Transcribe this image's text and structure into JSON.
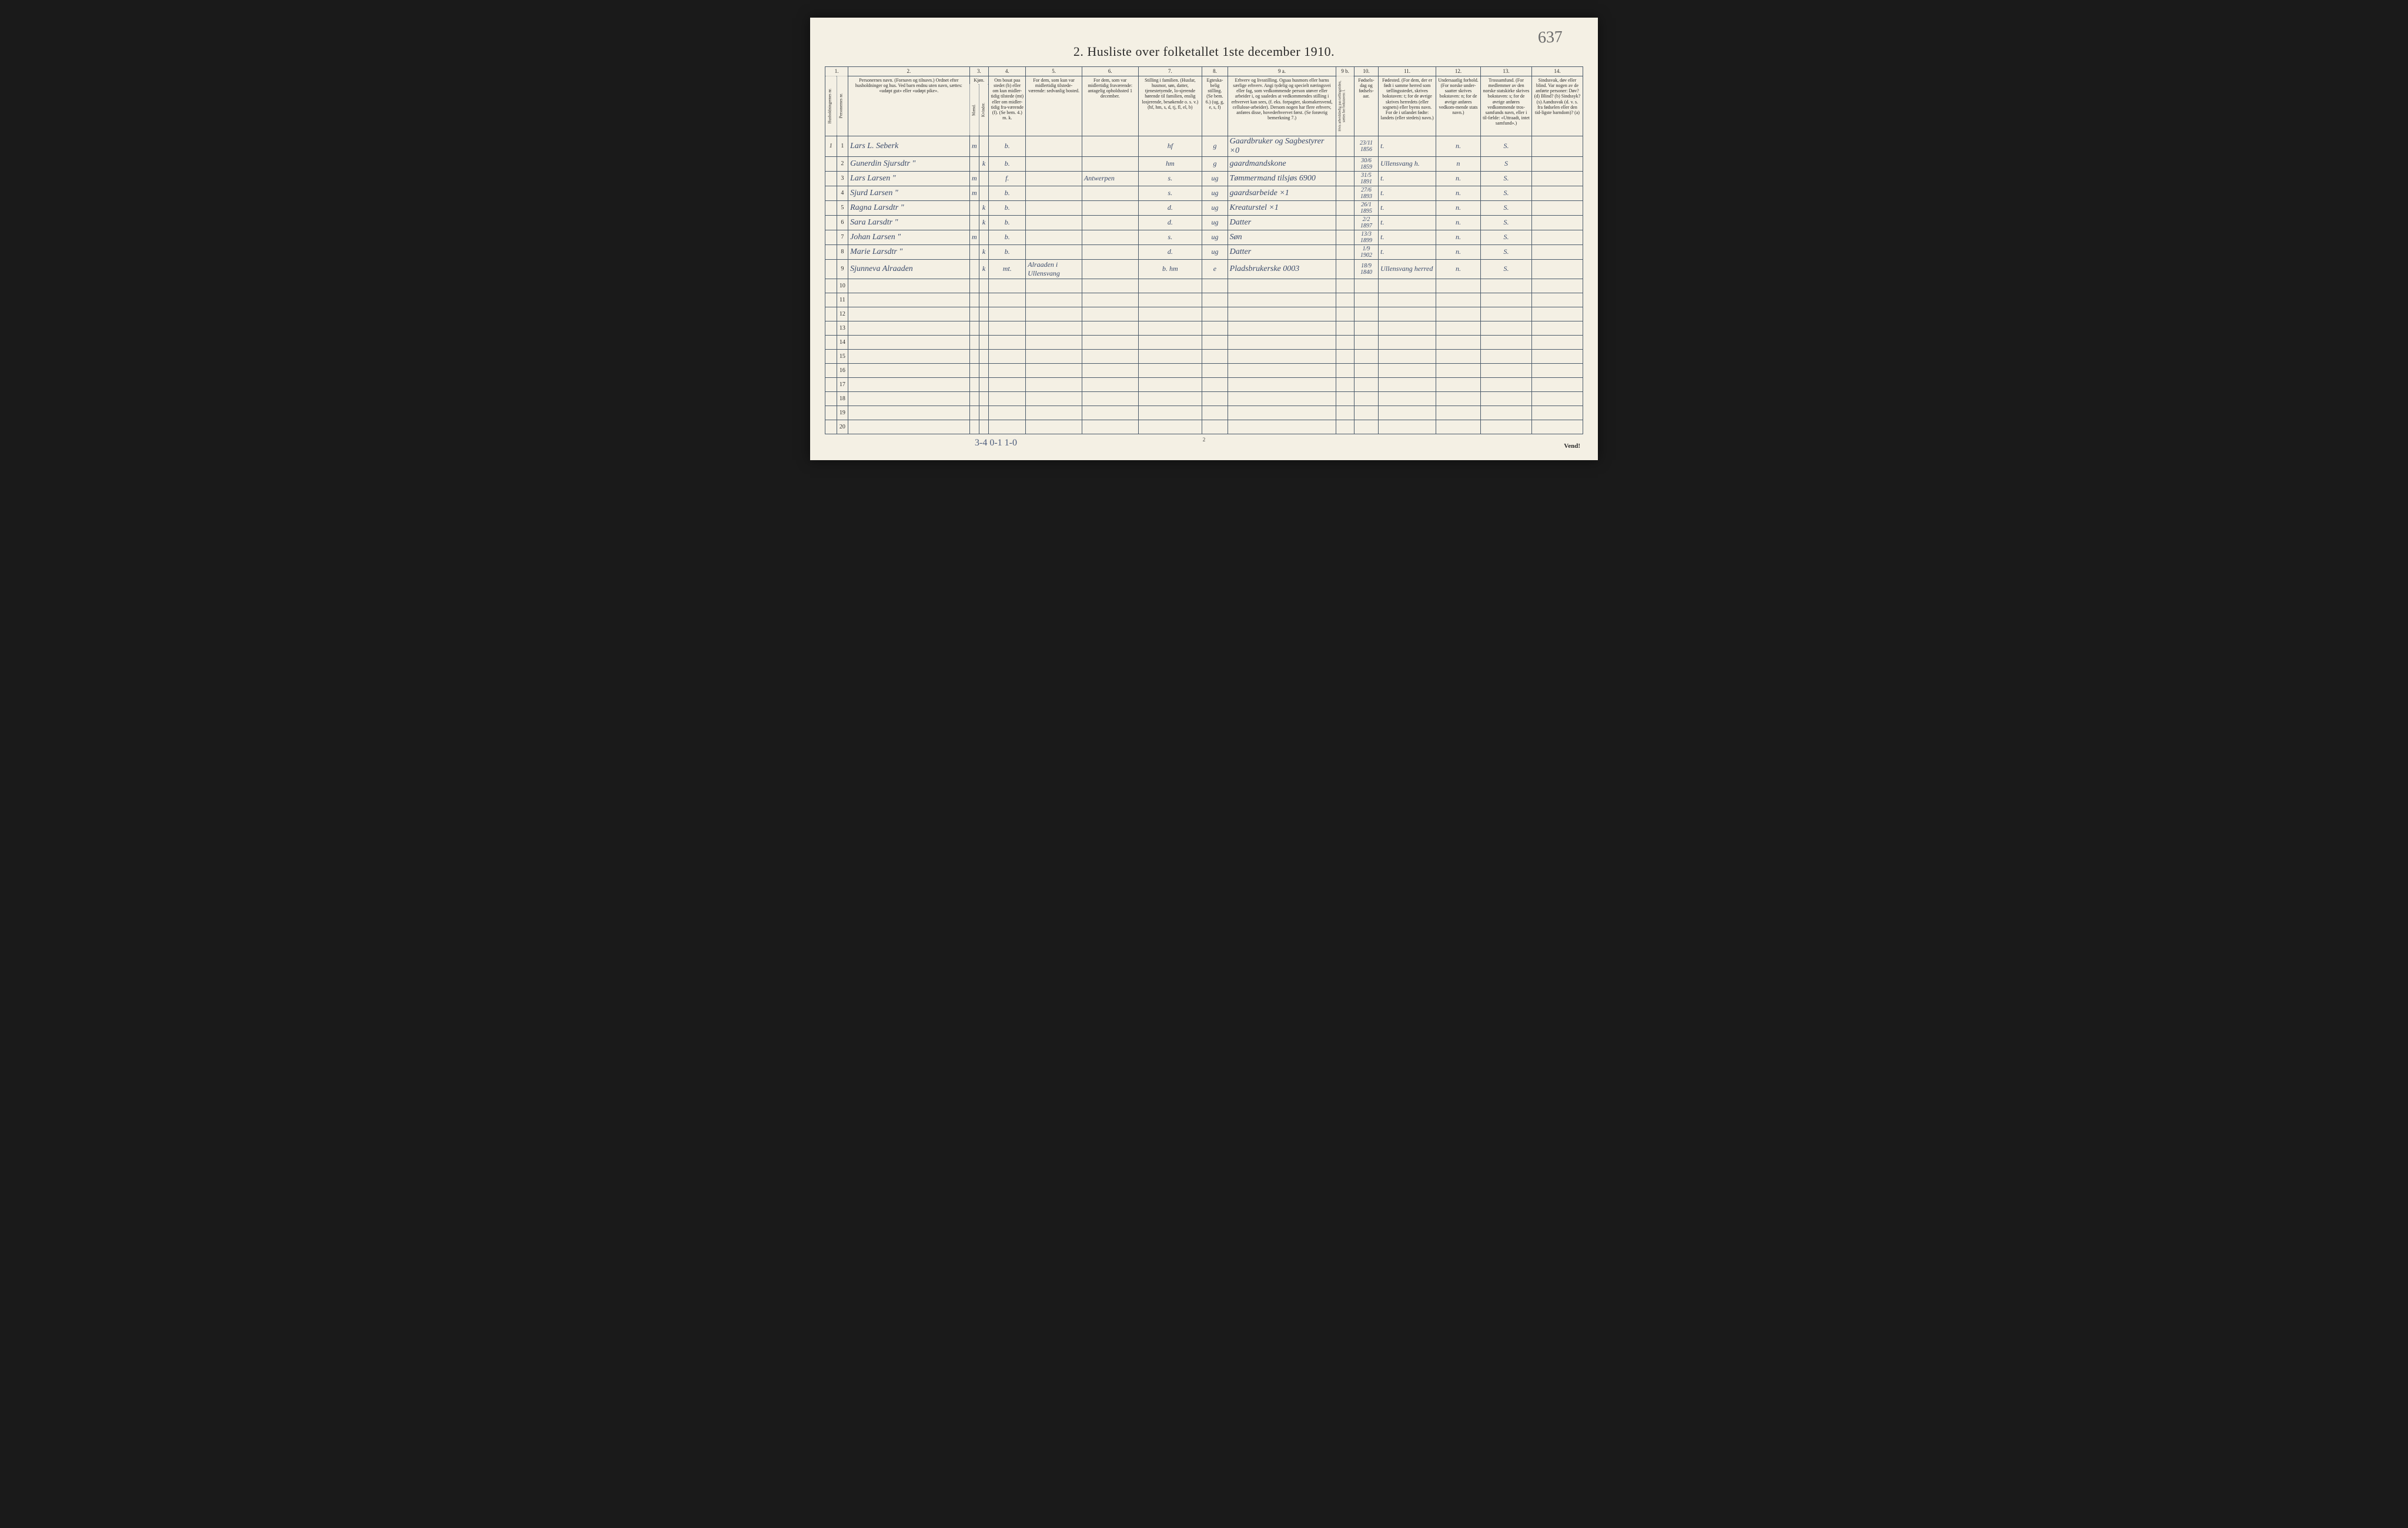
{
  "page_number_handwritten": "637",
  "title": "2.  Husliste over folketallet 1ste december 1910.",
  "footer_page_num": "2",
  "bottom_handwriting": "3-4   0-1   1-0",
  "vend_label": "Vend!",
  "colors": {
    "page_bg": "#f4f0e4",
    "border": "#4a5a6a",
    "ink_print": "#2a2a2a",
    "ink_hand": "#3a4a6a",
    "outer_bg": "#1a1a1a"
  },
  "column_numbers": [
    "1.",
    "",
    "2.",
    "3.",
    "",
    "4.",
    "5.",
    "6.",
    "7.",
    "8.",
    "9 a.",
    "9 b.",
    "10.",
    "11.",
    "12.",
    "13.",
    "14."
  ],
  "headers": {
    "c1": "Husholdningernes nr.",
    "c1b": "Personernes nr.",
    "c2": "Personernes navn.\n(Fornavn og tilnavn.)\nOrdnet efter husholdninger og hus.\nVed barn endnu uten navn, sættes: «udøpt gut» eller «udøpt pike».",
    "c3": "Kjøn.",
    "c3a": "Mænd.",
    "c3b": "Kvinder.",
    "c4": "Om bosat paa stedet (b) eller om kun midler-tidig tilstede (mt) eller om midler-tidig fra-værende (f).\n(Se bem. 4.)\nm. k.",
    "c5": "For dem, som kun var midlertidig tilstede-værende:\nsedvanlig bosted.",
    "c6": "For dem, som var midlertidig fraværende:\nantagelig opholdssted 1 december.",
    "c7": "Stilling i familien.\n(Husfar, husmor, søn, datter, tjenestetyende, lo-sjerende hørende til familien, enslig losjerende, besøkende o. s. v.)\n(hf, hm, s, d, tj, fl, el, b)",
    "c8": "Egteska-belig stilling.\n(Se bem. 6.)\n(ug, g, e, s, f)",
    "c9a": "Erhverv og livsstilling.\nOgsaa husmors eller barns særlige erhverv.\nAngi tydelig og specielt næringsvei eller fag, som vedkommende person utøver eller arbeider i, og saaledes at vedkommendes stilling i erhvervet kan sees, (f. eks. forpagter, skomakersvend, cellulose-arbeider). Dersom nogen har flere erhverv, anføres disse, hovederhvervet først.\n(Se forøvrig bemerkning 7.)",
    "c9b": "Hvis arbeidsledig paa tællingstiden, sættes her bokstaven: l.",
    "c10": "Fødsels-dag og fødsels-aar.",
    "c11": "Fødested.\n(For dem, der er født i samme herred som tællingsstedet, skrives bokstaven: t; for de øvrige skrives herredets (eller sognets) eller byens navn. For de i utlandet fødte: landets (eller stedets) navn.)",
    "c12": "Undersaatlig forhold.\n(For norske under-saatter skrives bokstaven: n; for de øvrige anføres vedkom-mende stats navn.)",
    "c13": "Trossamfund.\n(For medlemmer av den norske statskirke skrives bokstaven: s; for de øvrige anføres vedkommende tros-samfunds navn, eller i til-fælde: «Uttraadt, intet samfund».)",
    "c14": "Sindssvak, døv eller blind.\nVar nogen av de anførte personer:\nDøv? (d)\nBlind? (b)\nSindssyk? (s)\nAandssvak (d. v. s. fra fødselen eller den tid-ligste barndom)? (a)"
  },
  "rows": [
    {
      "hh": "1",
      "pn": "1",
      "name": "Lars L. Seberk",
      "mk": "m",
      "kv": "",
      "bmt": "b.",
      "c5": "",
      "c6": "",
      "fam": "hf",
      "eg": "g",
      "erh": "Gaardbruker og Sagbestyrer  ×0",
      "c9b": "",
      "dob": "23/11 1856",
      "fsted": "t.",
      "und": "n.",
      "tro": "S.",
      "c14": ""
    },
    {
      "hh": "",
      "pn": "2",
      "name": "Gunerdin Sjursdtr  \"",
      "mk": "",
      "kv": "k",
      "bmt": "b.",
      "c5": "",
      "c6": "",
      "fam": "hm",
      "eg": "g",
      "erh": "gaardmandskone",
      "c9b": "",
      "dob": "30/6 1859",
      "fsted": "Ullensvang h.",
      "und": "n",
      "tro": "S",
      "c14": ""
    },
    {
      "hh": "",
      "pn": "3",
      "name": "Lars Larsen  \"",
      "mk": "m",
      "kv": "",
      "bmt": "f.",
      "c5": "",
      "c6": "Antwerpen",
      "fam": "s.",
      "eg": "ug",
      "erh": "Tømmermand tilsjøs 6900",
      "c9b": "",
      "dob": "31/5 1891",
      "fsted": "t.",
      "und": "n.",
      "tro": "S.",
      "c14": ""
    },
    {
      "hh": "",
      "pn": "4",
      "name": "Sjurd Larsen  \"",
      "mk": "m",
      "kv": "",
      "bmt": "b.",
      "c5": "",
      "c6": "",
      "fam": "s.",
      "eg": "ug",
      "erh": "gaardsarbeide  ×1",
      "c9b": "",
      "dob": "27/6 1893",
      "fsted": "t.",
      "und": "n.",
      "tro": "S.",
      "c14": ""
    },
    {
      "hh": "",
      "pn": "5",
      "name": "Ragna Larsdtr  \"",
      "mk": "",
      "kv": "k",
      "bmt": "b.",
      "c5": "",
      "c6": "",
      "fam": "d.",
      "eg": "ug",
      "erh": "Kreaturstel  ×1",
      "c9b": "",
      "dob": "26/1 1895",
      "fsted": "t.",
      "und": "n.",
      "tro": "S.",
      "c14": ""
    },
    {
      "hh": "",
      "pn": "6",
      "name": "Sara Larsdtr  \"",
      "mk": "",
      "kv": "k",
      "bmt": "b.",
      "c5": "",
      "c6": "",
      "fam": "d.",
      "eg": "ug",
      "erh": "Datter",
      "c9b": "",
      "dob": "2/2 1897",
      "fsted": "t.",
      "und": "n.",
      "tro": "S.",
      "c14": ""
    },
    {
      "hh": "",
      "pn": "7",
      "name": "Johan Larsen  \"",
      "mk": "m",
      "kv": "",
      "bmt": "b.",
      "c5": "",
      "c6": "",
      "fam": "s.",
      "eg": "ug",
      "erh": "Søn",
      "c9b": "",
      "dob": "13/3 1899",
      "fsted": "t.",
      "und": "n.",
      "tro": "S.",
      "c14": ""
    },
    {
      "hh": "",
      "pn": "8",
      "name": "Marie Larsdtr  \"",
      "mk": "",
      "kv": "k",
      "bmt": "b.",
      "c5": "",
      "c6": "",
      "fam": "d.",
      "eg": "ug",
      "erh": "Datter",
      "c9b": "",
      "dob": "1/9 1902",
      "fsted": "t.",
      "und": "n.",
      "tro": "S.",
      "c14": ""
    },
    {
      "hh": "",
      "pn": "9",
      "name": "Sjunneva Alraaden",
      "mk": "",
      "kv": "k",
      "bmt": "mt.",
      "c5": "Alraaden i Ullensvang",
      "c6": "",
      "fam": "b. hm",
      "eg": "e",
      "erh": "Pladsbrukerske 0003",
      "c9b": "",
      "dob": "18/9 1840",
      "fsted": "Ullensvang herred",
      "und": "n.",
      "tro": "S.",
      "c14": ""
    }
  ],
  "blank_rows": [
    10,
    11,
    12,
    13,
    14,
    15,
    16,
    17,
    18,
    19,
    20
  ]
}
